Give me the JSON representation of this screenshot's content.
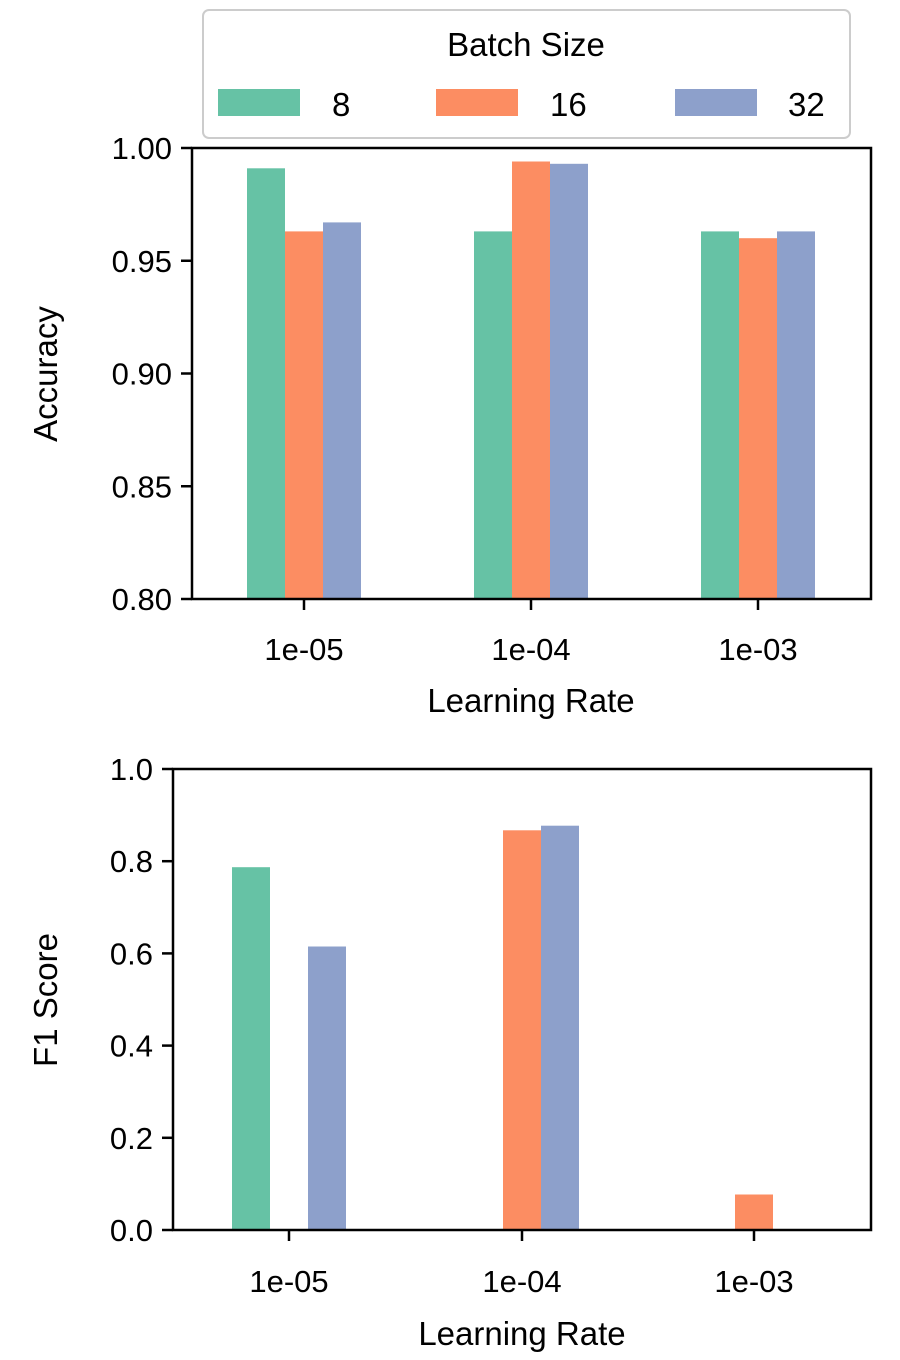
{
  "colors": {
    "s8": "#66c2a5",
    "s16": "#fc8d62",
    "s32": "#8da0cb"
  },
  "legend": {
    "title": "Batch Size",
    "entries": [
      {
        "label": "8",
        "color": "#66c2a5"
      },
      {
        "label": "16",
        "color": "#fc8d62"
      },
      {
        "label": "32",
        "color": "#8da0cb"
      }
    ]
  },
  "chart_data": [
    {
      "type": "bar",
      "title": "",
      "xlabel": "Learning Rate",
      "ylabel": "Accuracy",
      "categories": [
        "1e-05",
        "1e-04",
        "1e-03"
      ],
      "ylim": [
        0.8,
        1.0
      ],
      "yticks": [
        "0.80",
        "0.85",
        "0.90",
        "0.95",
        "1.00"
      ],
      "series": [
        {
          "name": "8",
          "values": [
            0.991,
            0.963,
            0.963
          ]
        },
        {
          "name": "16",
          "values": [
            0.963,
            0.994,
            0.96
          ]
        },
        {
          "name": "32",
          "values": [
            0.967,
            0.993,
            0.963
          ]
        }
      ],
      "legend": "top-center, above plot"
    },
    {
      "type": "bar",
      "title": "",
      "xlabel": "Learning Rate",
      "ylabel": "F1 Score",
      "categories": [
        "1e-05",
        "1e-04",
        "1e-03"
      ],
      "ylim": [
        0.0,
        1.0
      ],
      "yticks": [
        "0.0",
        "0.2",
        "0.4",
        "0.6",
        "0.8",
        "1.0"
      ],
      "series": [
        {
          "name": "8",
          "values": [
            0.787,
            0.0,
            0.0
          ]
        },
        {
          "name": "16",
          "values": [
            0.0,
            0.867,
            0.077
          ]
        },
        {
          "name": "32",
          "values": [
            0.615,
            0.877,
            0.0
          ]
        }
      ]
    }
  ]
}
